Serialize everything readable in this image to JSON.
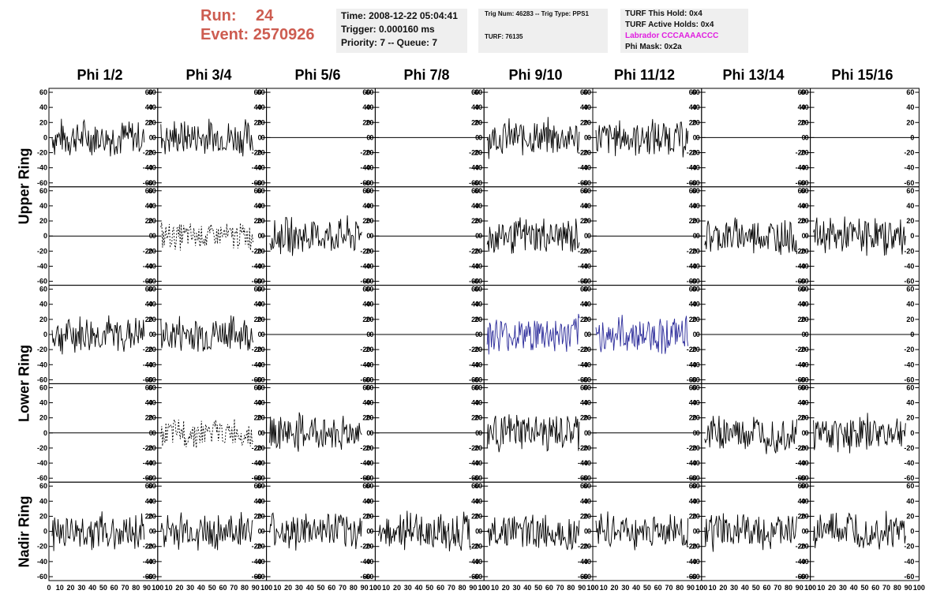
{
  "run_box": {
    "run_label": "Run:",
    "run_value": "24",
    "event_label": "Event:",
    "event_value": "2570926"
  },
  "time_box": {
    "time": "Time: 2008-12-22 05:04:41",
    "trigger": "Trigger: 0.000160 ms",
    "priority": "Priority: 7 -- Queue: 7"
  },
  "trig_box": {
    "trig": "Trig Num: 46283 -- Trig Type: PPS1",
    "turf": "TURF: 76135"
  },
  "turf_box": {
    "this_hold": "TURF This Hold: 0x4",
    "active_holds": "TURF Active Holds: 0x4",
    "labrador": "Labrador CCCAAAACCC",
    "phi_mask": "Phi Mask: 0x2a"
  },
  "columns": [
    "Phi 1/2",
    "Phi 3/4",
    "Phi 5/6",
    "Phi 7/8",
    "Phi 9/10",
    "Phi 11/12",
    "Phi 13/14",
    "Phi 15/16"
  ],
  "row_labels": {
    "upper": "Upper Ring",
    "lower": "Lower Ring",
    "nadir": "Nadir Ring"
  },
  "colors": {
    "run_text": "#cd5c50",
    "highlight_trace": "#2b2b9a",
    "trace": "#000000",
    "labrador": "#e01ee0",
    "info_bg": "#efefef"
  },
  "chart_data": {
    "type": "line",
    "grid_rows": 5,
    "grid_cols": 8,
    "ylim": [
      -60,
      60
    ],
    "xlim": [
      0,
      100
    ],
    "y_ticks": [
      "60",
      "40",
      "20",
      "0",
      "-20",
      "-40",
      "-60"
    ],
    "x_ticks": [
      "0",
      "10",
      "20",
      "30",
      "40",
      "50",
      "60",
      "70",
      "80",
      "90",
      "100"
    ],
    "panel_traces": [
      [
        "noise",
        "noise",
        "flat",
        "flat",
        "noise",
        "noise",
        "flat",
        "flat"
      ],
      [
        "flat",
        "dashed",
        "noise",
        "flat",
        "noise",
        "flat",
        "noise",
        "noise"
      ],
      [
        "noise",
        "noise",
        "flat",
        "flat",
        "blue",
        "blue",
        "flat",
        "flat"
      ],
      [
        "flat",
        "dashed",
        "noise",
        "flat",
        "noise",
        "flat",
        "noise",
        "noise"
      ],
      [
        "noise",
        "noise",
        "noise",
        "noise",
        "noise",
        "noise",
        "noise",
        "noise"
      ]
    ]
  }
}
